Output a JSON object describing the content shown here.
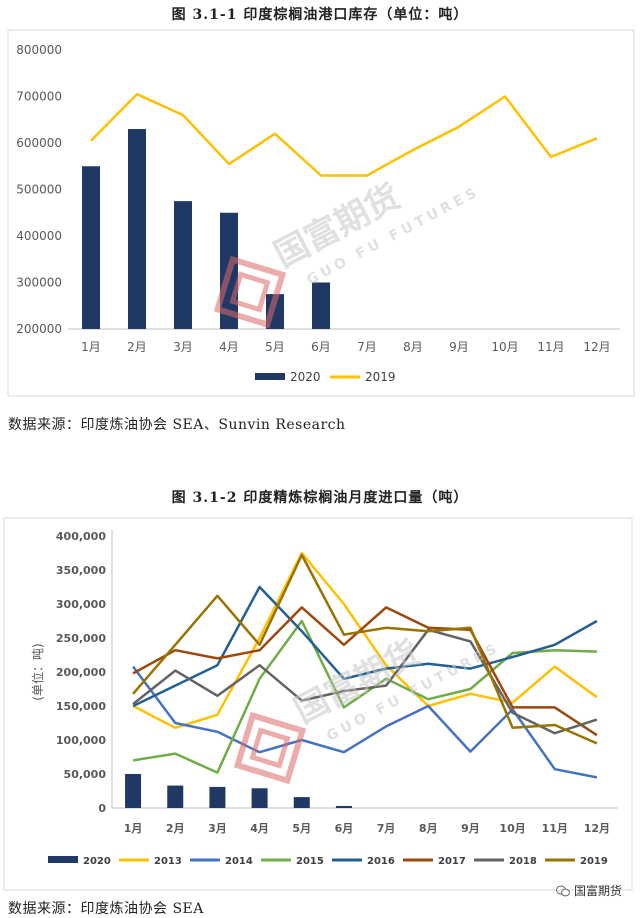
{
  "chart1": {
    "title": "图 3.1-1 印度棕榈油港口库存（单位：吨）",
    "source": "数据来源：印度炼油协会 SEA、Sunvin Research",
    "chart_data": {
      "type": "bar",
      "categories": [
        "1月",
        "2月",
        "3月",
        "4月",
        "5月",
        "6月",
        "7月",
        "8月",
        "9月",
        "10月",
        "11月",
        "12月"
      ],
      "y_ticks": [
        "800000",
        "700000",
        "600000",
        "500000",
        "400000",
        "300000",
        "200000"
      ],
      "ylim": [
        200000,
        800000
      ],
      "series": [
        {
          "name": "2020",
          "type": "bar",
          "color": "#1f3864",
          "values": [
            550000,
            630000,
            475000,
            450000,
            275000,
            300000,
            null,
            null,
            null,
            null,
            null,
            null
          ]
        },
        {
          "name": "2019",
          "type": "line",
          "color": "#ffc000",
          "values": [
            605000,
            705000,
            660000,
            555000,
            620000,
            530000,
            530000,
            585000,
            635000,
            700000,
            570000,
            610000
          ]
        }
      ],
      "legend": "bottom",
      "grid": false
    }
  },
  "chart2": {
    "title": "图 3.1-2 印度精炼棕榈油月度进口量（吨）",
    "source": "数据来源：印度炼油协会 SEA",
    "chart_data": {
      "type": "line",
      "categories": [
        "1月",
        "2月",
        "3月",
        "4月",
        "5月",
        "6月",
        "7月",
        "8月",
        "9月",
        "10月",
        "11月",
        "12月"
      ],
      "ylabel": "(单位：吨)",
      "y_ticks": [
        "400,000",
        "350,000",
        "300,000",
        "250,000",
        "200,000",
        "150,000",
        "100,000",
        "50,000",
        "0"
      ],
      "ylim": [
        0,
        400000
      ],
      "series": [
        {
          "name": "2020",
          "type": "bar",
          "color": "#1f3864",
          "values": [
            50000,
            33000,
            31000,
            29000,
            16000,
            3000,
            null,
            null,
            null,
            null,
            null,
            null
          ]
        },
        {
          "name": "2013",
          "color": "#ffc000",
          "values": [
            150000,
            118000,
            137000,
            250000,
            375000,
            300000,
            210000,
            150000,
            168000,
            155000,
            208000,
            163000
          ]
        },
        {
          "name": "2014",
          "color": "#4472c4",
          "values": [
            208000,
            125000,
            112000,
            82000,
            100000,
            82000,
            120000,
            150000,
            83000,
            145000,
            57000,
            45000
          ]
        },
        {
          "name": "2015",
          "color": "#70ad47",
          "values": [
            70000,
            80000,
            52000,
            190000,
            275000,
            148000,
            190000,
            160000,
            175000,
            228000,
            232000,
            230000
          ]
        },
        {
          "name": "2016",
          "color": "#255e91",
          "values": [
            150000,
            180000,
            210000,
            325000,
            260000,
            190000,
            205000,
            212000,
            205000,
            222000,
            240000,
            275000
          ]
        },
        {
          "name": "2017",
          "color": "#9e480e",
          "values": [
            198000,
            232000,
            220000,
            232000,
            295000,
            240000,
            295000,
            265000,
            262000,
            148000,
            148000,
            107000
          ]
        },
        {
          "name": "2018",
          "color": "#636363",
          "values": [
            153000,
            202000,
            165000,
            210000,
            158000,
            172000,
            180000,
            262000,
            245000,
            140000,
            110000,
            130000
          ]
        },
        {
          "name": "2019",
          "color": "#997300",
          "values": [
            168000,
            240000,
            312000,
            240000,
            372000,
            255000,
            265000,
            260000,
            265000,
            118000,
            122000,
            95000
          ]
        }
      ],
      "legend": "bottom",
      "grid": false
    }
  },
  "watermark": {
    "cn": "国富期货",
    "en": "GUO FU FUTURES"
  },
  "brand": {
    "label": "国富期货"
  }
}
